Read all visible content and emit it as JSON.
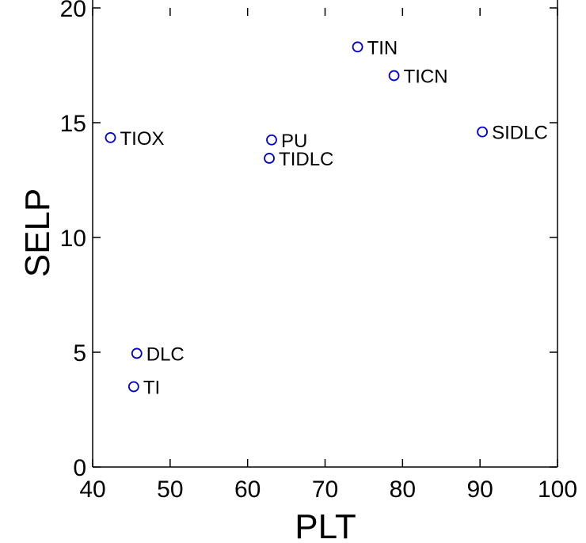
{
  "chart_data": {
    "type": "scatter",
    "title": "",
    "xlabel": "PLT",
    "ylabel": "SELP",
    "xlim": [
      40,
      100
    ],
    "ylim": [
      0,
      20
    ],
    "xticks": [
      40,
      50,
      60,
      70,
      80,
      90,
      100
    ],
    "yticks": [
      0,
      5,
      10,
      15,
      20
    ],
    "grid": false,
    "marker_color": "#0000cc",
    "points": [
      {
        "label": "TIN",
        "x": 74.2,
        "y": 18.3
      },
      {
        "label": "TICN",
        "x": 78.9,
        "y": 17.05
      },
      {
        "label": "TIOX",
        "x": 42.3,
        "y": 14.35
      },
      {
        "label": "PU",
        "x": 63.1,
        "y": 14.25
      },
      {
        "label": "TIDLC",
        "x": 62.8,
        "y": 13.45
      },
      {
        "label": "SIDLC",
        "x": 90.3,
        "y": 14.6
      },
      {
        "label": "DLC",
        "x": 45.7,
        "y": 4.95
      },
      {
        "label": "TI",
        "x": 45.3,
        "y": 3.5
      }
    ]
  }
}
